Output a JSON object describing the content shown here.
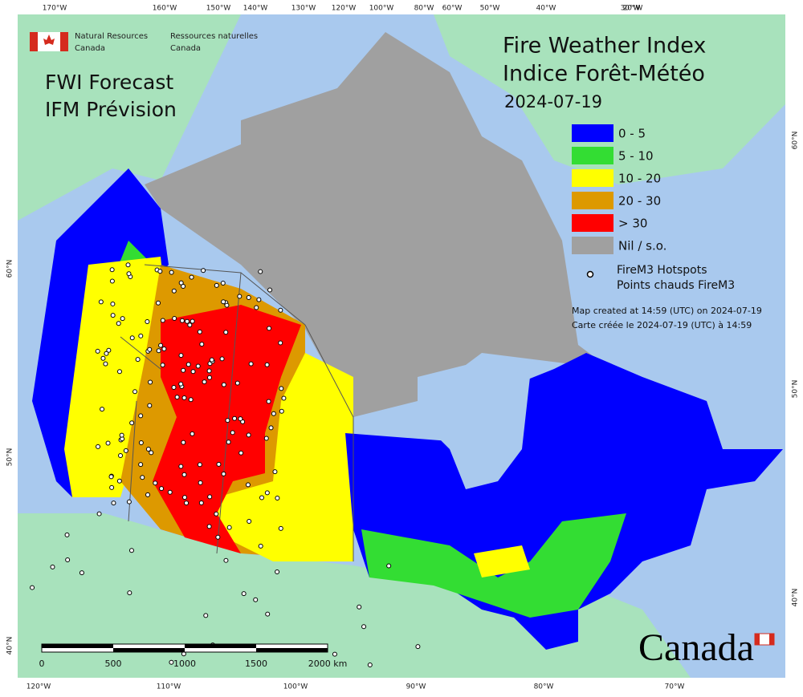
{
  "header": {
    "dept_en": [
      "Natural Resources",
      "Canada"
    ],
    "dept_fr": [
      "Ressources naturelles",
      "Canada"
    ]
  },
  "forecast_title": [
    "FWI Forecast",
    "IFM Prévision"
  ],
  "title": [
    "Fire Weather Index",
    "Indice Forêt-Météo"
  ],
  "date": "2024-07-19",
  "legend": {
    "items": [
      {
        "label": "0 - 5",
        "color": "#0000ff"
      },
      {
        "label": "5 - 10",
        "color": "#33dd33"
      },
      {
        "label": "10 - 20",
        "color": "#ffff00"
      },
      {
        "label": "20 - 30",
        "color": "#dd9900"
      },
      {
        "label": "> 30",
        "color": "#ff0000"
      },
      {
        "label": "Nil / s.o.",
        "color": "#a0a0a0"
      }
    ],
    "hotspots": [
      "FireM3 Hotspots",
      "Points chauds FireM3"
    ]
  },
  "credits": [
    "Map created at 14:59 (UTC) on 2024-07-19",
    "Carte créée le 2024-07-19 (UTC) à 14:59"
  ],
  "graticule": {
    "top": [
      "170°W",
      "160°W",
      "150°W",
      "140°W",
      "130°W",
      "120°W",
      "100°W",
      "80°W",
      "60°W",
      "50°W",
      "40°W",
      "30°W",
      "20°W"
    ],
    "bottom": [
      "120°W",
      "110°W",
      "100°W",
      "90°W",
      "80°W",
      "70°W"
    ],
    "left": [
      "60°N",
      "50°N",
      "40°N"
    ],
    "right": [
      "60°N",
      "50°N",
      "40°N"
    ]
  },
  "scale_bar": {
    "ticks": [
      "0",
      "500",
      "1000",
      "1500",
      "2000 km"
    ]
  },
  "wordmark": "Canada"
}
